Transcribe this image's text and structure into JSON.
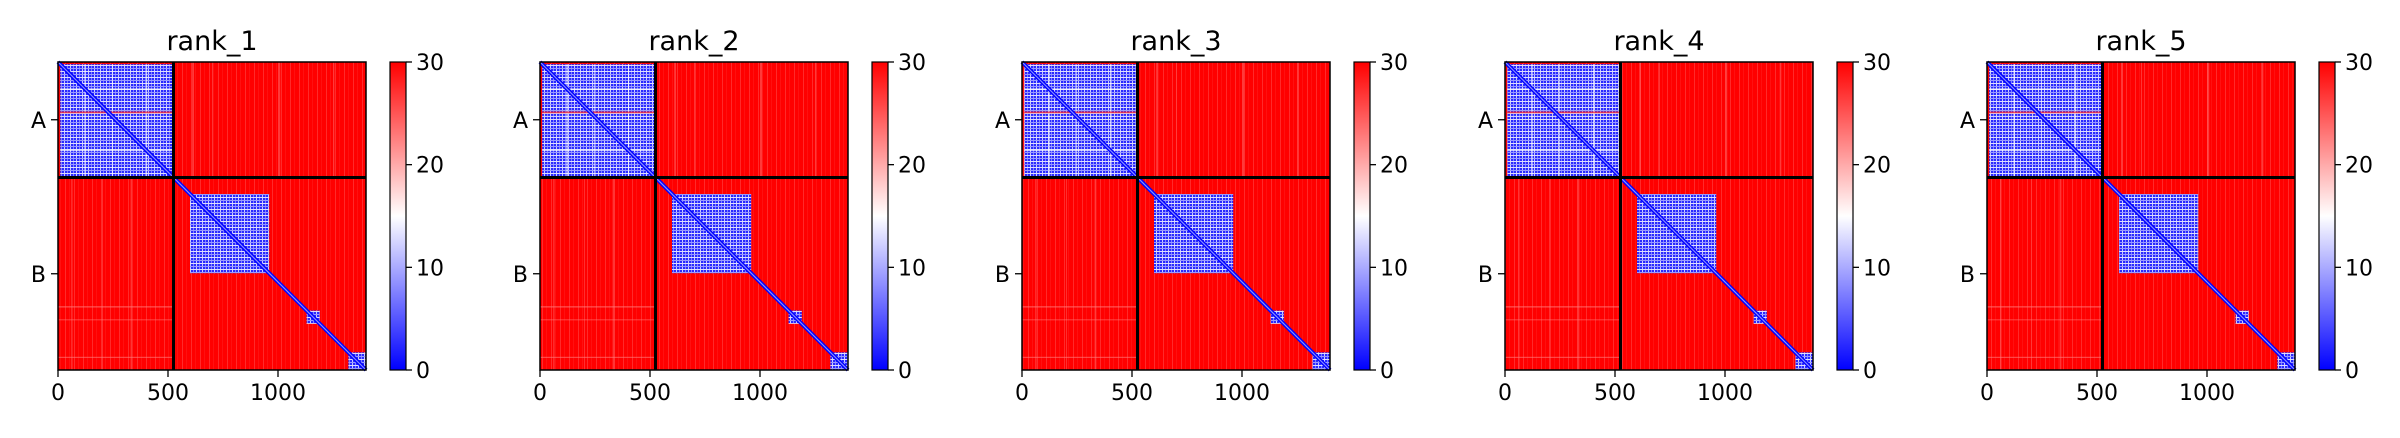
{
  "chart_data": [
    {
      "type": "heatmap",
      "title": "rank_1",
      "colorbar_ticks": [
        "0",
        "10",
        "20",
        "30"
      ],
      "x_ticks": [
        "0",
        "500",
        "1000"
      ],
      "y_ticks": [
        "A",
        "B"
      ],
      "x_tick_values": [
        0,
        500,
        1000
      ],
      "chain_boundary": 525,
      "length": 1400,
      "vmin": 0,
      "vmax": 30,
      "colormap": [
        "#0000ff",
        "#ffffff",
        "#ff0000"
      ]
    },
    {
      "type": "heatmap",
      "title": "rank_2",
      "colorbar_ticks": [
        "0",
        "10",
        "20",
        "30"
      ],
      "x_ticks": [
        "0",
        "500",
        "1000"
      ],
      "y_ticks": [
        "A",
        "B"
      ],
      "x_tick_values": [
        0,
        500,
        1000
      ],
      "chain_boundary": 525,
      "length": 1400,
      "vmin": 0,
      "vmax": 30,
      "colormap": [
        "#0000ff",
        "#ffffff",
        "#ff0000"
      ]
    },
    {
      "type": "heatmap",
      "title": "rank_3",
      "colorbar_ticks": [
        "0",
        "10",
        "20",
        "30"
      ],
      "x_ticks": [
        "0",
        "500",
        "1000"
      ],
      "y_ticks": [
        "A",
        "B"
      ],
      "x_tick_values": [
        0,
        500,
        1000
      ],
      "chain_boundary": 525,
      "length": 1400,
      "vmin": 0,
      "vmax": 30,
      "colormap": [
        "#0000ff",
        "#ffffff",
        "#ff0000"
      ]
    },
    {
      "type": "heatmap",
      "title": "rank_4",
      "colorbar_ticks": [
        "0",
        "10",
        "20",
        "30"
      ],
      "x_ticks": [
        "0",
        "500",
        "1000"
      ],
      "y_ticks": [
        "A",
        "B"
      ],
      "x_tick_values": [
        0,
        500,
        1000
      ],
      "chain_boundary": 525,
      "length": 1400,
      "vmin": 0,
      "vmax": 30,
      "colormap": [
        "#0000ff",
        "#ffffff",
        "#ff0000"
      ]
    },
    {
      "type": "heatmap",
      "title": "rank_5",
      "colorbar_ticks": [
        "0",
        "10",
        "20",
        "30"
      ],
      "x_ticks": [
        "0",
        "500",
        "1000"
      ],
      "y_ticks": [
        "A",
        "B"
      ],
      "x_tick_values": [
        0,
        500,
        1000
      ],
      "chain_boundary": 525,
      "length": 1400,
      "vmin": 0,
      "vmax": 30,
      "colormap": [
        "#0000ff",
        "#ffffff",
        "#ff0000"
      ]
    }
  ]
}
